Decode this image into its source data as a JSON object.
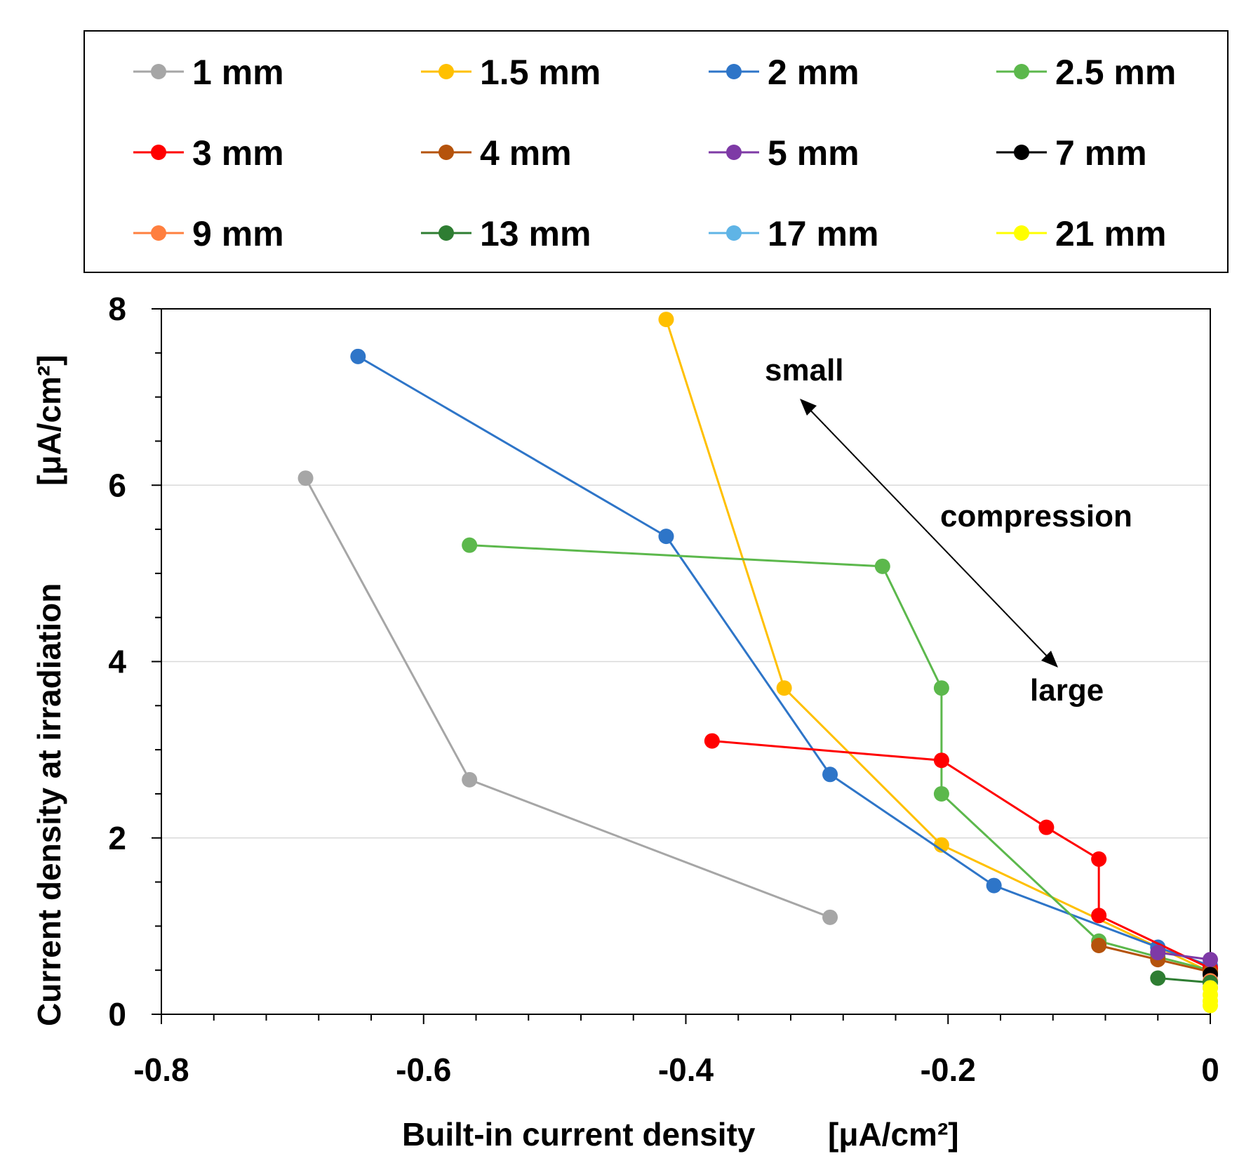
{
  "chart_data": {
    "type": "line",
    "title": "",
    "xlabel": "Built-in current density",
    "xunit": "[μA/cm²]",
    "ylabel": "Current density at irradiation",
    "yunit": "[μA/cm²]",
    "xlim": [
      -0.8,
      0
    ],
    "ylim": [
      0,
      8
    ],
    "xticks": [
      -0.8,
      -0.6,
      -0.4,
      -0.2,
      0
    ],
    "xtick_labels": [
      "-0.8",
      "-0.6",
      "-0.4",
      "-0.2",
      "0"
    ],
    "yticks": [
      0,
      2,
      4,
      6,
      8
    ],
    "ytick_labels": [
      "0",
      "2",
      "4",
      "6",
      "8"
    ],
    "grid": "horizontal",
    "legend_position": "top",
    "series": [
      {
        "name": "1 mm",
        "color": "#a6a6a6",
        "x": [
          -0.69,
          -0.565,
          -0.29
        ],
        "y": [
          6.08,
          2.66,
          1.1
        ]
      },
      {
        "name": "1.5 mm",
        "color": "#ffc000",
        "x": [
          -0.415,
          -0.325,
          -0.205,
          0
        ],
        "y": [
          7.88,
          3.7,
          1.92,
          0.48
        ]
      },
      {
        "name": "2 mm",
        "color": "#2e75c8",
        "x": [
          -0.65,
          -0.415,
          -0.29,
          -0.165,
          -0.04,
          0
        ],
        "y": [
          7.46,
          5.42,
          2.72,
          1.46,
          0.76,
          0.55
        ]
      },
      {
        "name": "2.5 mm",
        "color": "#5cb84c",
        "x": [
          -0.565,
          -0.25,
          -0.205,
          -0.205,
          -0.085,
          -0.04,
          0
        ],
        "y": [
          5.32,
          5.08,
          3.7,
          2.5,
          0.83,
          0.65,
          0.5
        ]
      },
      {
        "name": "3 mm",
        "color": "#ff0000",
        "x": [
          -0.38,
          -0.205,
          -0.125,
          -0.085,
          -0.085,
          0
        ],
        "y": [
          3.1,
          2.88,
          2.12,
          1.76,
          1.12,
          0.52
        ]
      },
      {
        "name": "4 mm",
        "color": "#b5530c",
        "x": [
          -0.085,
          -0.04,
          0
        ],
        "y": [
          0.78,
          0.62,
          0.48
        ]
      },
      {
        "name": "5 mm",
        "color": "#7e3aa6",
        "x": [
          -0.04,
          0
        ],
        "y": [
          0.7,
          0.62
        ]
      },
      {
        "name": "7 mm",
        "color": "#000000",
        "x": [
          0
        ],
        "y": [
          0.45
        ]
      },
      {
        "name": "9 mm",
        "color": "#ff7f3f",
        "x": [
          0
        ],
        "y": [
          0.38
        ]
      },
      {
        "name": "13 mm",
        "color": "#2e7d32",
        "x": [
          -0.04,
          0
        ],
        "y": [
          0.41,
          0.36
        ]
      },
      {
        "name": "17 mm",
        "color": "#5fb4e6",
        "x": [
          0
        ],
        "y": [
          0.3
        ]
      },
      {
        "name": "21 mm",
        "color": "#ffff00",
        "x": [
          0,
          0,
          0,
          0
        ],
        "y": [
          0.3,
          0.22,
          0.15,
          0.1
        ]
      }
    ],
    "annotations": [
      {
        "text": "small"
      },
      {
        "text": "compression"
      },
      {
        "text": "large"
      }
    ]
  }
}
